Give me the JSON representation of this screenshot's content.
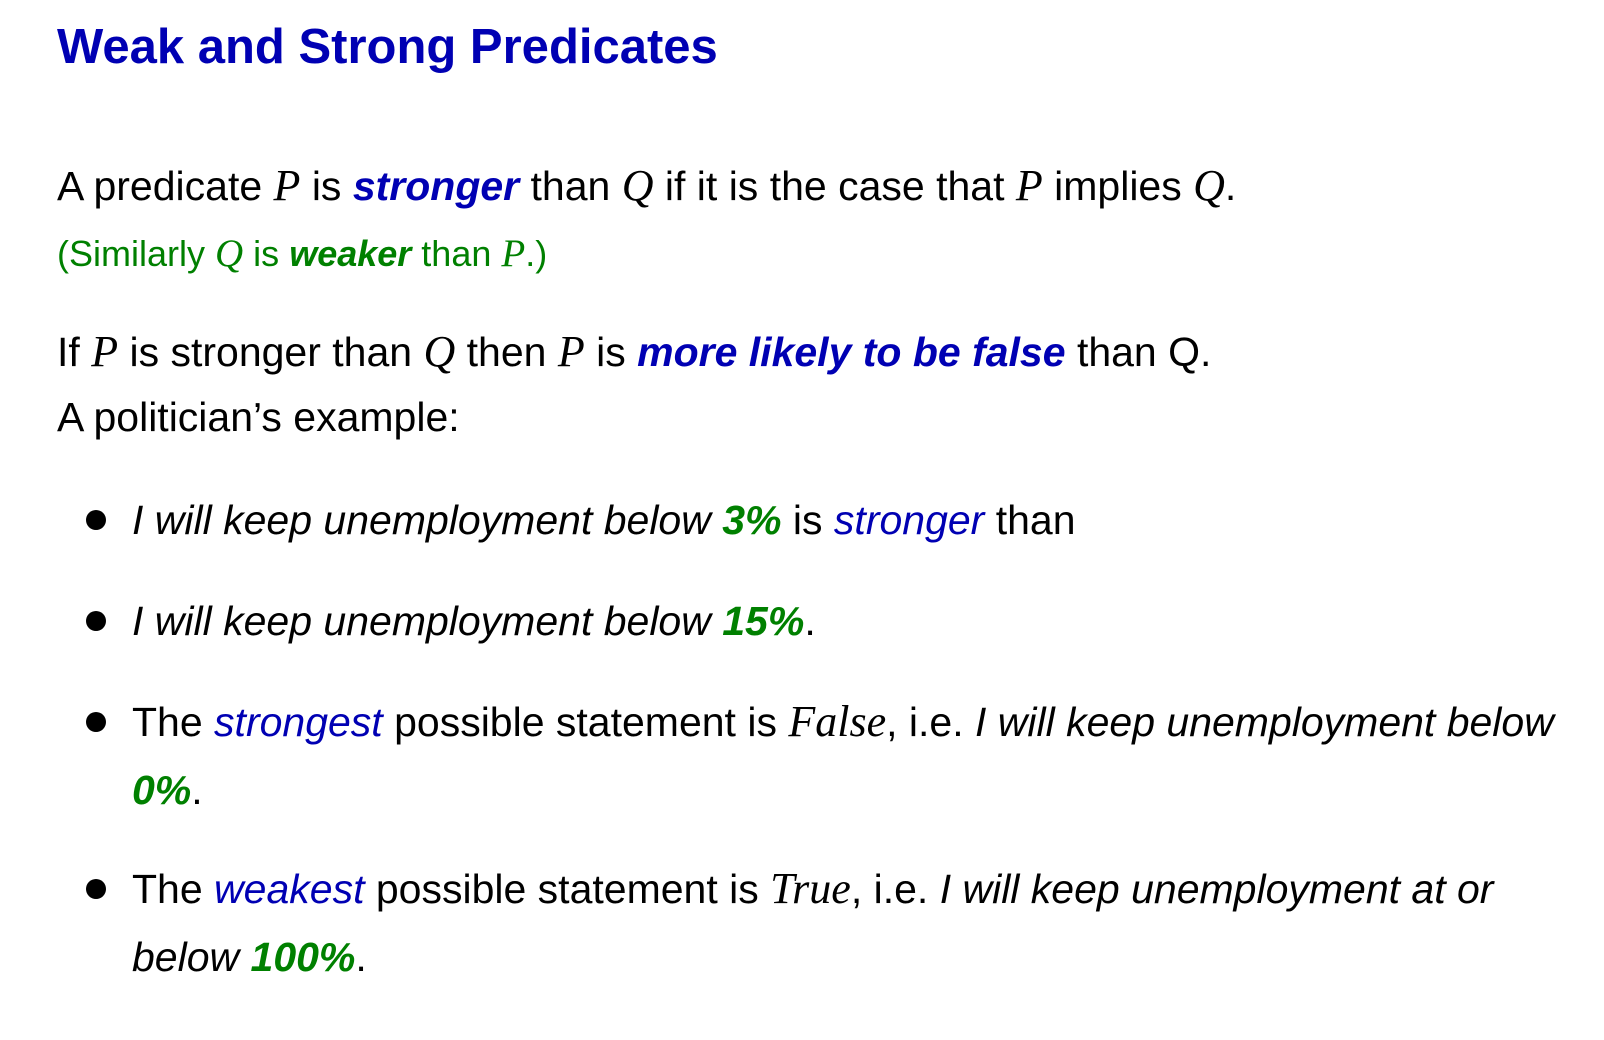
{
  "title": "Weak and Strong Predicates",
  "p1": {
    "a": "A predicate ",
    "P1": "P",
    "b": " is ",
    "kw": "stronger",
    "c": " than ",
    "Q1": "Q",
    "d": " if it is the case that ",
    "P2": "P",
    "e": " implies ",
    "Q2": "Q",
    "f": "."
  },
  "p2": {
    "a": "(Similarly ",
    "Q": "Q",
    "b": " is ",
    "kw": "weaker",
    "c": " than ",
    "P": "P",
    "d": ".)"
  },
  "p3": {
    "a": "If ",
    "P1": "P",
    "b": " is stronger than ",
    "Q": "Q",
    "c": " then ",
    "P2": "P",
    "d": " is ",
    "kw": "more likely to be false",
    "e": " than Q."
  },
  "p4": "A politician’s example:",
  "bullets": [
    {
      "it": "I will keep unemployment below ",
      "pct": "3%",
      "a": " is ",
      "em": "stronger",
      "b": " than"
    },
    {
      "it": "I will keep unemployment below ",
      "pct": "15%",
      "a": "."
    },
    {
      "a": "The ",
      "em": "strongest",
      "b": " possible statement is ",
      "math": "False",
      "c": ", i.e. ",
      "it": "I will keep unemployment below ",
      "pct": "0%",
      "d": "."
    },
    {
      "a": "The ",
      "em": "weakest",
      "b": " possible statement is ",
      "math": "True",
      "c": ", i.e. ",
      "it": "I will keep unemployment at or below ",
      "pct": "100%",
      "d": "."
    }
  ]
}
